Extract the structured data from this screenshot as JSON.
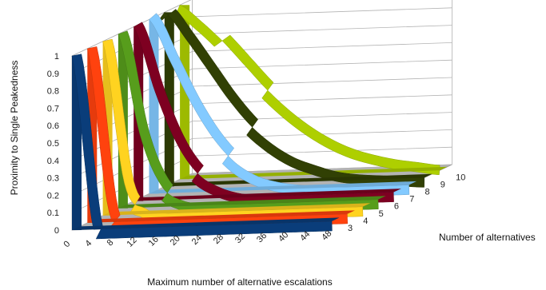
{
  "chart_data": {
    "type": "area",
    "title": "",
    "ylabel": "Proximity to Single Peakedness",
    "xlabel": "Maximum number of alternative escalations",
    "zlabel": "Number of alternatives",
    "ylim": [
      0,
      1
    ],
    "y_ticks": [
      "0",
      "0.1",
      "0.2",
      "0.3",
      "0.4",
      "0.5",
      "0.6",
      "0.7",
      "0.8",
      "0.9",
      "1"
    ],
    "x": [
      0,
      4,
      8,
      12,
      16,
      20,
      24,
      28,
      32,
      36,
      40,
      44,
      48
    ],
    "x_ticks": [
      "0",
      "4",
      "8",
      "12",
      "16",
      "20",
      "24",
      "28",
      "32",
      "36",
      "40",
      "44",
      "48"
    ],
    "grid": true,
    "series": [
      {
        "name": "3",
        "color": "#0a3d7a",
        "values": [
          1,
          0,
          0,
          0,
          0,
          0,
          0,
          0,
          0,
          0,
          0,
          0,
          0
        ]
      },
      {
        "name": "4",
        "color": "#ff420e",
        "values": [
          1,
          0.06,
          0,
          0,
          0,
          0,
          0,
          0,
          0,
          0,
          0,
          0,
          0
        ]
      },
      {
        "name": "5",
        "color": "#ffd320",
        "values": [
          1,
          0.18,
          0.03,
          0,
          0,
          0,
          0,
          0,
          0,
          0,
          0,
          0,
          0
        ]
      },
      {
        "name": "6",
        "color": "#579d1c",
        "values": [
          1,
          0.42,
          0.12,
          0.03,
          0.01,
          0,
          0,
          0,
          0,
          0,
          0,
          0,
          0
        ]
      },
      {
        "name": "7",
        "color": "#7e0021",
        "values": [
          1,
          0.62,
          0.32,
          0.14,
          0.06,
          0.02,
          0.01,
          0,
          0,
          0,
          0,
          0,
          0
        ]
      },
      {
        "name": "8",
        "color": "#83caff",
        "values": [
          1,
          0.75,
          0.5,
          0.3,
          0.16,
          0.08,
          0.04,
          0.02,
          0.01,
          0,
          0,
          0,
          0
        ]
      },
      {
        "name": "9",
        "color": "#314004",
        "values": [
          1,
          0.84,
          0.66,
          0.48,
          0.33,
          0.22,
          0.14,
          0.09,
          0.05,
          0.03,
          0.02,
          0.01,
          0
        ]
      },
      {
        "name": "10",
        "color": "#aecf00",
        "values": [
          1,
          0.9,
          0.78,
          0.64,
          0.5,
          0.38,
          0.28,
          0.2,
          0.14,
          0.1,
          0.07,
          0.05,
          0.03
        ]
      }
    ]
  }
}
